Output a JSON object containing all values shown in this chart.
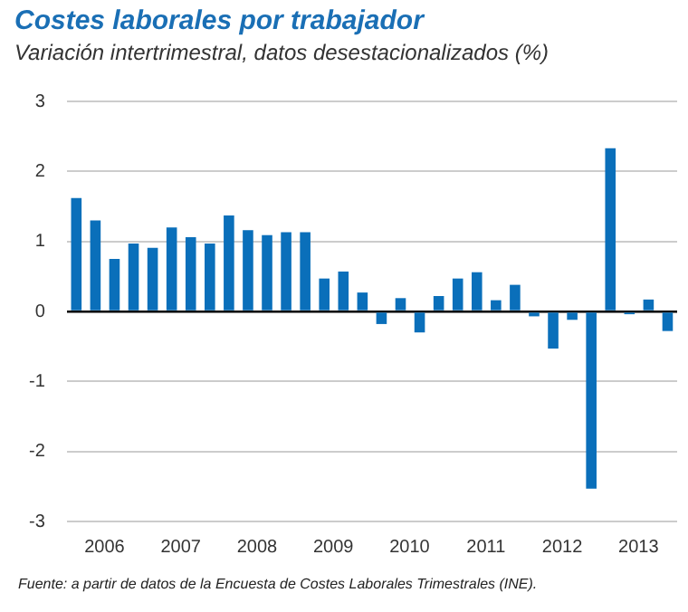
{
  "chart_data": {
    "type": "bar",
    "title": "Costes laborales por trabajador",
    "subtitle": "Variación intertrimestral, datos desestacionalizados (%)",
    "categories": [
      null,
      "2006",
      null,
      null,
      null,
      "2007",
      null,
      null,
      null,
      "2008",
      null,
      null,
      null,
      "2009",
      null,
      null,
      null,
      "2010",
      null,
      null,
      null,
      "2011",
      null,
      null,
      null,
      "2012",
      null,
      null,
      null,
      "2013",
      null,
      null
    ],
    "values": [
      1.62,
      1.3,
      0.75,
      0.97,
      0.91,
      1.2,
      1.06,
      0.97,
      1.37,
      1.16,
      1.09,
      1.13,
      1.13,
      0.47,
      0.57,
      0.27,
      -0.18,
      0.19,
      -0.3,
      0.22,
      0.47,
      0.56,
      0.16,
      0.38,
      -0.07,
      -0.53,
      -0.12,
      -2.53,
      2.33,
      -0.04,
      0.17,
      -0.28
    ],
    "color": "#0a6fba",
    "ylim": [
      -3,
      3
    ],
    "yticks": [
      -3,
      -2,
      -1,
      0,
      1,
      2,
      3
    ],
    "grid": "y",
    "annotations": [
      "Fuente: a partir de datos de la Encuesta de Costes Laborales Trimestrales (INE)."
    ]
  }
}
